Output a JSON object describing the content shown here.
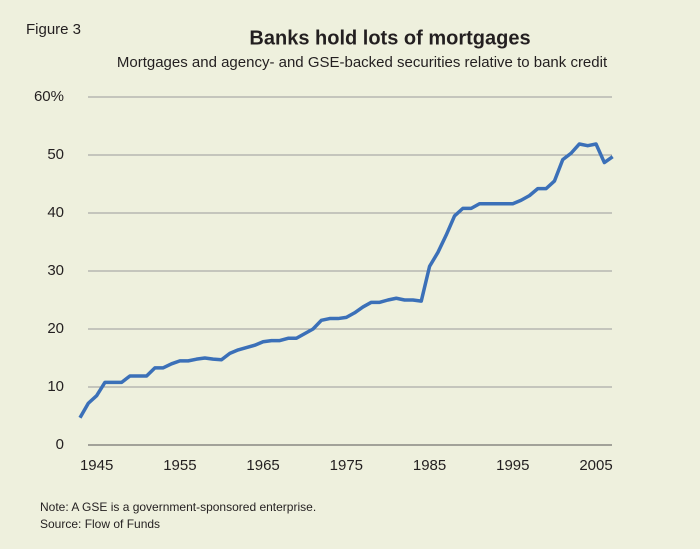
{
  "chart_data": {
    "type": "line",
    "figure_label": "Figure 3",
    "title": "Banks hold lots of mortgages",
    "subtitle": "Mortgages and agency- and GSE-backed securities relative to bank credit",
    "notes": [
      "Note: A GSE is a government-sponsored enterprise.",
      "Source: Flow of Funds"
    ],
    "x": [
      1943,
      1944,
      1945,
      1946,
      1947,
      1948,
      1949,
      1950,
      1951,
      1952,
      1953,
      1954,
      1955,
      1956,
      1957,
      1958,
      1959,
      1960,
      1961,
      1962,
      1963,
      1964,
      1965,
      1966,
      1967,
      1968,
      1969,
      1970,
      1971,
      1972,
      1973,
      1974,
      1975,
      1976,
      1977,
      1978,
      1979,
      1980,
      1981,
      1982,
      1983,
      1984,
      1985,
      1986,
      1987,
      1988,
      1989,
      1990,
      1991,
      1992,
      1993,
      1994,
      1995,
      1996,
      1997,
      1998,
      1999,
      2000,
      2001,
      2002,
      2003,
      2004,
      2005,
      2006,
      2007
    ],
    "series": [
      {
        "color": "#3b70b8",
        "values": [
          4.7,
          7.2,
          8.5,
          10.8,
          10.8,
          10.8,
          11.9,
          11.9,
          11.9,
          13.3,
          13.3,
          14.0,
          14.5,
          14.5,
          14.8,
          15.0,
          14.8,
          14.7,
          15.8,
          16.4,
          16.8,
          17.2,
          17.8,
          18.0,
          18.0,
          18.4,
          18.4,
          19.2,
          20.0,
          21.5,
          21.8,
          21.8,
          22.0,
          22.8,
          23.8,
          24.6,
          24.6,
          25.0,
          25.3,
          25.0,
          25.0,
          24.8,
          30.8,
          33.2,
          36.2,
          39.5,
          40.8,
          40.8,
          41.6,
          41.6,
          41.6,
          41.6,
          41.6,
          42.2,
          43.0,
          44.2,
          44.2,
          45.5,
          49.2,
          50.3,
          51.9,
          51.6,
          51.9,
          48.7,
          49.7
        ]
      }
    ],
    "xlim": [
      1943,
      2008
    ],
    "xticks": [
      1945,
      1955,
      1965,
      1975,
      1985,
      1995,
      2005
    ],
    "ylim": [
      0,
      60
    ],
    "yticks": [
      0,
      10,
      20,
      30,
      40,
      50,
      {
        "value": 60,
        "label": "60%"
      }
    ],
    "grid": true
  }
}
